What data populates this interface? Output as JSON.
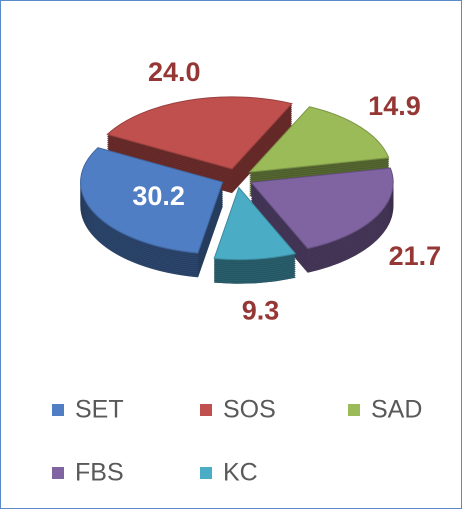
{
  "chart_data": {
    "type": "pie3d",
    "categories": [
      "SET",
      "SOS",
      "SAD",
      "FBS",
      "KC"
    ],
    "values": [
      30.2,
      24.0,
      14.9,
      21.7,
      9.3
    ],
    "value_labels": [
      "30.2",
      "24.0",
      "14.9",
      "21.7",
      "9.3"
    ],
    "colors": [
      "#4f7ec4",
      "#c0504d",
      "#9bbb59",
      "#8064a2",
      "#4bacc6"
    ],
    "legend": "bottom"
  }
}
